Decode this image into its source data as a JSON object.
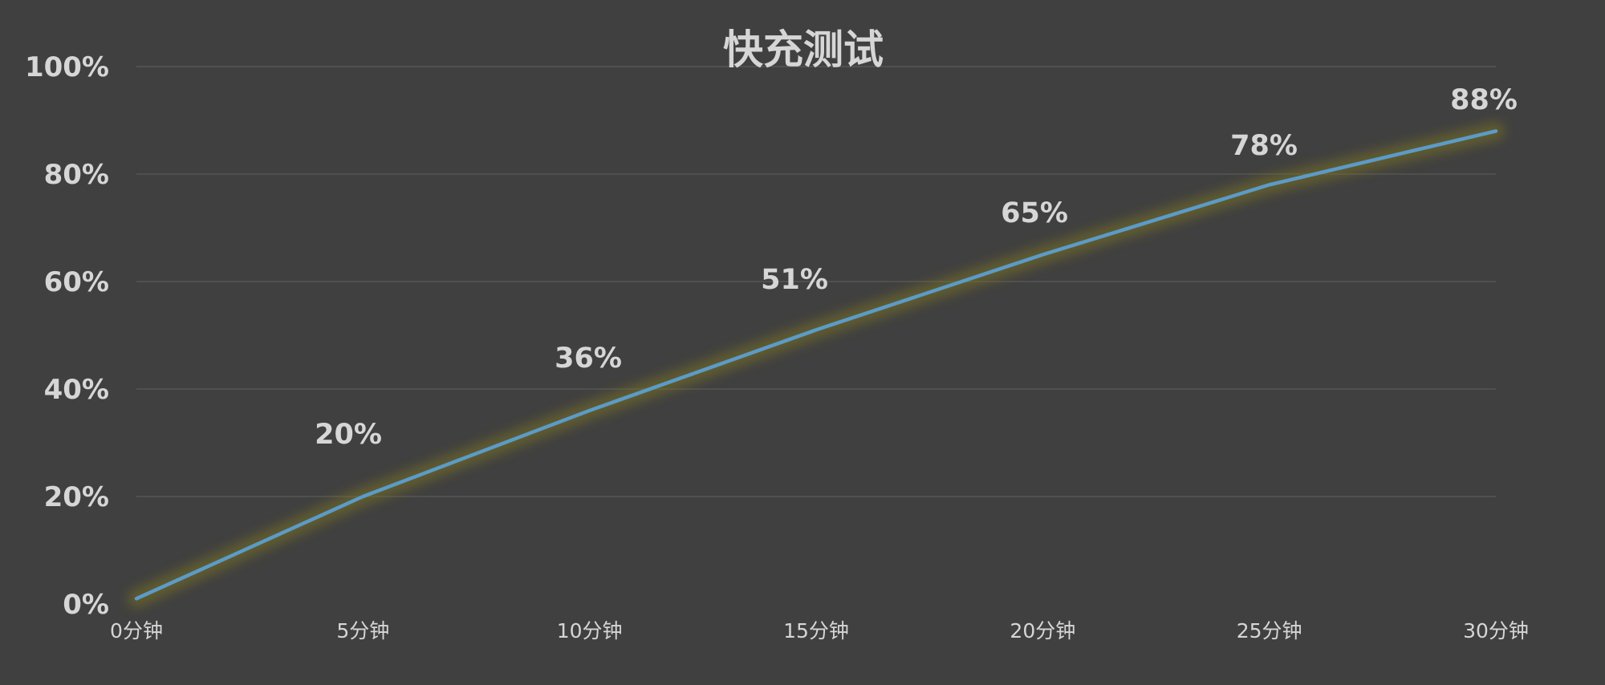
{
  "chart_data": {
    "type": "line",
    "title": "快充测试",
    "categories": [
      "0分钟",
      "5分钟",
      "10分钟",
      "15分钟",
      "20分钟",
      "25分钟",
      "30分钟"
    ],
    "series": [
      {
        "values": [
          1,
          20,
          36,
          51,
          65,
          78,
          88
        ]
      }
    ],
    "data_labels": [
      "20%",
      "36%",
      "51%",
      "65%",
      "78%",
      "88%"
    ],
    "y_ticks": [
      "0%",
      "20%",
      "40%",
      "60%",
      "80%",
      "100%"
    ],
    "ylim": [
      0,
      100
    ],
    "grid": true,
    "legend": "none",
    "colors": {
      "background": "#404040",
      "line": "#5b9bc8",
      "glow": "#7d7424",
      "text": "#d6d6d6",
      "grid": "#5a5a5a"
    }
  }
}
